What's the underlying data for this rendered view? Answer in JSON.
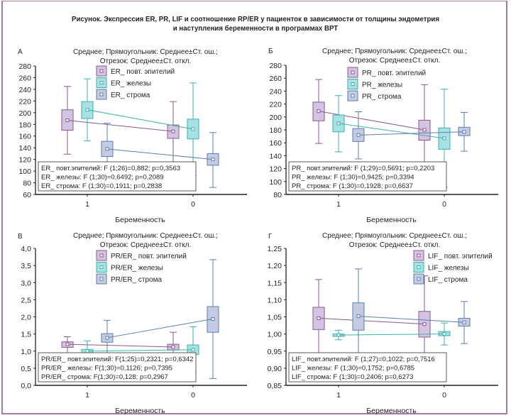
{
  "figure": {
    "title_line1": "Рисунок. Экспрессия ER, PR, LIF и соотношение RP/ER у пациенток в зависимости от толщины эндометрия",
    "title_line2": "и наступления беременности в программах ВРТ"
  },
  "colors": {
    "epithelium": "#8a5a8c",
    "epithelium_fill": "#d2c4e2",
    "glands": "#3bb3a6",
    "glands_fill": "#a8e0e6",
    "stroma": "#5a7fae",
    "stroma_fill": "#c4cbe2",
    "frame": "#a07da0"
  },
  "chart_data": [
    {
      "type": "box",
      "panel_label": "А",
      "title_line1": "Среднее; Прямоугольник: Среднее±Ст. ош.;",
      "title_line2": "Отрезок: Среднее±Ст. откл.",
      "xlabel": "Беременность",
      "categories": [
        "1",
        "0"
      ],
      "ylim": [
        60,
        280
      ],
      "yticks": [
        "60",
        "80",
        "100",
        "120",
        "140",
        "160",
        "180",
        "200",
        "220",
        "240",
        "260",
        "280"
      ],
      "series": [
        {
          "name": "ER_ повт. эпителий",
          "key": "epithelium",
          "mean": [
            187,
            168
          ],
          "se_low": [
            170,
            156
          ],
          "se_high": [
            205,
            179
          ],
          "sd_low": [
            129,
            116
          ],
          "sd_high": [
            245,
            219
          ]
        },
        {
          "name": "ER_ железы",
          "key": "glands",
          "mean": [
            205,
            172
          ],
          "se_low": [
            190,
            155
          ],
          "se_high": [
            219,
            189
          ],
          "sd_low": [
            152,
            92
          ],
          "sd_high": [
            258,
            251
          ]
        },
        {
          "name": "ER_ строма",
          "key": "stroma",
          "mean": [
            138,
            120
          ],
          "se_low": [
            125,
            110
          ],
          "se_high": [
            151,
            130
          ],
          "sd_low": [
            93,
            72
          ],
          "sd_high": [
            182,
            166
          ]
        }
      ],
      "stats": [
        "ER_ повт.эпителий: F (1;26)=0,882; p=0,3563",
        "ER_ железы: F (1;30)=0,6492; p=0,2089",
        "ER_ строма: F (1;30)=0,1911; p=0,2838"
      ]
    },
    {
      "type": "box",
      "panel_label": "Б",
      "title_line1": "Среднее; Прямоугольник: Среднее±Ст. ош.;",
      "title_line2": "Отрезок: Среднее±Ст. откл.",
      "xlabel": "Беременность",
      "categories": [
        "1",
        "0"
      ],
      "ylim": [
        80,
        280
      ],
      "yticks": [
        "80",
        "100",
        "120",
        "140",
        "160",
        "180",
        "200",
        "220",
        "240",
        "260",
        "280"
      ],
      "series": [
        {
          "name": "PR_ повт. эпителий",
          "key": "epithelium",
          "mean": [
            209,
            180
          ],
          "se_low": [
            194,
            164
          ],
          "se_high": [
            223,
            195
          ],
          "sd_low": [
            159,
            110
          ],
          "sd_high": [
            258,
            250
          ]
        },
        {
          "name": "PR_ железы",
          "key": "glands",
          "mean": [
            190,
            167
          ],
          "se_low": [
            177,
            150
          ],
          "se_high": [
            203,
            183
          ],
          "sd_low": [
            146,
            91
          ],
          "sd_high": [
            233,
            243
          ]
        },
        {
          "name": "PR_ строма",
          "key": "stroma",
          "mean": [
            172,
            177
          ],
          "se_low": [
            162,
            171
          ],
          "se_high": [
            182,
            184
          ],
          "sd_low": [
            135,
            147
          ],
          "sd_high": [
            208,
            207
          ]
        }
      ],
      "stats": [
        "PR_ повт.эпителий: F (1;29)=0,5691; p=0,2203",
        "PR_ железы: F (1;30)=0,9425; p=0,3394",
        "PR_ строма: F (1;30)=0,1928; p=0,6637"
      ]
    },
    {
      "type": "box",
      "panel_label": "В",
      "title_line1": "Среднее; Прямоугольник: Среднее±Ст. ош.;",
      "title_line2": "Отрезок: Среднее±Ст. откл.",
      "xlabel": "Беременность",
      "categories": [
        "1",
        "0"
      ],
      "ylim": [
        0,
        4
      ],
      "yticks": [
        "0,0",
        "0,5",
        "1,0",
        "1,5",
        "2,0",
        "2,5",
        "3,0",
        "3,5",
        "4,0"
      ],
      "series": [
        {
          "name": "PR/ER_ повт. эпителий",
          "key": "epithelium",
          "mean": [
            1.2,
            1.12
          ],
          "se_low": [
            1.11,
            1.03
          ],
          "se_high": [
            1.27,
            1.2
          ],
          "sd_low": [
            0.95,
            0.7
          ],
          "sd_high": [
            1.42,
            1.55
          ]
        },
        {
          "name": "PR/ER_ железы",
          "key": "glands",
          "mean": [
            1.0,
            1.04
          ],
          "se_low": [
            0.93,
            0.9
          ],
          "se_high": [
            1.05,
            1.18
          ],
          "sd_low": [
            0.72,
            0.38
          ],
          "sd_high": [
            1.3,
            1.71
          ]
        },
        {
          "name": "PR/ER_ строма",
          "key": "stroma",
          "mean": [
            1.39,
            1.94
          ],
          "se_low": [
            1.26,
            1.55
          ],
          "se_high": [
            1.51,
            2.3
          ],
          "sd_low": [
            0.9,
            0.2
          ],
          "sd_high": [
            1.9,
            3.67
          ]
        }
      ],
      "stats": [
        "PR/ER_ повт.эпителий: F(1;25)=0,2321; p=0,6342",
        "PR/ER_ железы: F(1;30)=0,1126; p=0,7395",
        "PR/ER_ строма: F(1;30)=0,128; p=0,2967"
      ]
    },
    {
      "type": "box",
      "panel_label": "Г",
      "title_line1": "Среднее; Прямоугольник: Среднее±Ст. ош.;",
      "title_line2": "Отрезок: Среднее±Ст. откл.",
      "xlabel": "Беременность",
      "categories": [
        "1",
        "0"
      ],
      "ylim": [
        0.85,
        1.25
      ],
      "yticks": [
        "0,85",
        "0,90",
        "0,95",
        "1,00",
        "1,05",
        "1,10",
        "1,15",
        "1,20",
        "1,25"
      ],
      "series": [
        {
          "name": "LIF_ повт. эпителий",
          "key": "epithelium",
          "mean": [
            1.046,
            1.029
          ],
          "se_low": [
            1.013,
            0.991
          ],
          "se_high": [
            1.078,
            1.066
          ],
          "sd_low": [
            0.935,
            0.9
          ],
          "sd_high": [
            1.159,
            1.17
          ]
        },
        {
          "name": "LIF_ железы",
          "key": "glands",
          "mean": [
            0.997,
            1.0
          ],
          "se_low": [
            0.993,
            0.995
          ],
          "se_high": [
            1.0,
            1.007
          ],
          "sd_low": [
            0.983,
            0.968
          ],
          "sd_high": [
            1.011,
            1.032
          ]
        },
        {
          "name": "LIF_ строма",
          "key": "stroma",
          "mean": [
            1.052,
            1.034
          ],
          "se_low": [
            1.011,
            1.023
          ],
          "se_high": [
            1.091,
            1.046
          ],
          "sd_low": [
            0.93,
            0.972
          ],
          "sd_high": [
            1.19,
            1.095
          ]
        }
      ],
      "stats": [
        "LIF_ повт.эпителий: F (1;27)=0,1022; p=0,7516",
        "LIF_ железы: F (1;30)=0,1752; p=0,6785",
        "LIF_ строма: F (1;30)=0,2406; p=0,6273"
      ]
    }
  ]
}
